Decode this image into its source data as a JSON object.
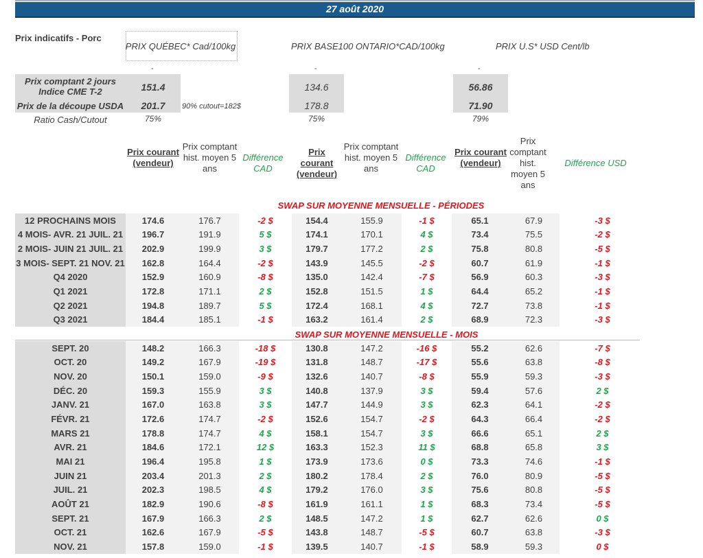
{
  "date": "27 août 2020",
  "title": "Prix indicatifs - Porc",
  "market_headers": [
    "PRIX QUÉBEC* Cad/100kg",
    "PRIX BASE100 ONTARIO*CAD/100kg",
    "PRIX U.S* USD Cent/lb"
  ],
  "dash": "-",
  "indicators": {
    "cash_label": "Prix comptant 2 jours Indice CME T-2",
    "cutout_label": "Prix de la découpe USDA",
    "ratio_label": "Ratio Cash/Cutout",
    "cash": [
      "151.4",
      "134.6",
      "56.86"
    ],
    "cutout": [
      "201.7",
      "178.8",
      "71.90"
    ],
    "ratio": [
      "75%",
      "75%",
      "79%"
    ],
    "note": "90% cutout=182$"
  },
  "column_headers": {
    "prix_courant": "Prix courant (vendeur)",
    "hist": "Prix comptant hist. moyen 5 ans",
    "hist_us": "Prix comptant hist. moyen 5 ans",
    "diff_cad": "Différence CAD",
    "diff_usd": "Différence USD"
  },
  "colors": {
    "header": "#1b5a8c",
    "negative": "#e8141c",
    "positive": "#1aa84a"
  },
  "periods": {
    "title": "SWAP SUR MOYENNE MENSUELLE - PÉRIODES",
    "rows": [
      {
        "label": "12 PROCHAINS MOIS",
        "v": [
          "174.6",
          "176.7",
          "-2 $",
          "154.4",
          "155.9",
          "-1 $",
          "65.1",
          "67.9",
          "-3 $"
        ],
        "c": "rrr"
      },
      {
        "label": "4 MOIS- AVR. 21 JUIL. 21",
        "v": [
          "196.7",
          "191.9",
          "5 $",
          "174.1",
          "170.1",
          "4 $",
          "73.4",
          "75.5",
          "-2 $"
        ],
        "c": "ggr"
      },
      {
        "label": "2 MOIS- JUIN 21 JUIL. 21",
        "v": [
          "202.9",
          "199.9",
          "3 $",
          "179.7",
          "177.2",
          "2 $",
          "75.8",
          "80.8",
          "-5 $"
        ],
        "c": "ggr"
      },
      {
        "label": "3 MOIS- SEPT. 21 NOV. 21",
        "v": [
          "162.8",
          "164.4",
          "-2 $",
          "143.9",
          "145.5",
          "-2 $",
          "60.7",
          "61.9",
          "-1 $"
        ],
        "c": "rrr"
      },
      {
        "label": "Q4 2020",
        "v": [
          "152.9",
          "160.9",
          "-8 $",
          "135.0",
          "142.4",
          "-7 $",
          "56.9",
          "60.3",
          "-3 $"
        ],
        "c": "rrr"
      },
      {
        "label": "Q1 2021",
        "v": [
          "172.8",
          "171.1",
          "2 $",
          "152.8",
          "151.5",
          "1 $",
          "64.4",
          "65.2",
          "-1 $"
        ],
        "c": "ggr"
      },
      {
        "label": "Q2 2021",
        "v": [
          "194.8",
          "189.7",
          "5 $",
          "172.4",
          "168.1",
          "4 $",
          "72.7",
          "73.8",
          "-1 $"
        ],
        "c": "ggr"
      },
      {
        "label": "Q3 2021",
        "v": [
          "184.4",
          "185.1",
          "-1 $",
          "163.2",
          "161.4",
          "2 $",
          "68.9",
          "72.3",
          "-3 $"
        ],
        "c": "rgr"
      }
    ]
  },
  "months": {
    "title": "SWAP SUR MOYENNE MENSUELLE - MOIS",
    "rows": [
      {
        "label": "SEPT. 20",
        "v": [
          "148.2",
          "166.3",
          "-18 $",
          "130.8",
          "147.2",
          "-16 $",
          "55.2",
          "62.6",
          "-7 $"
        ],
        "c": "rrr"
      },
      {
        "label": "OCT. 20",
        "v": [
          "149.2",
          "167.9",
          "-19 $",
          "131.8",
          "148.7",
          "-17 $",
          "55.6",
          "63.8",
          "-8 $"
        ],
        "c": "rrr"
      },
      {
        "label": "NOV. 20",
        "v": [
          "150.1",
          "159.0",
          "-9 $",
          "132.6",
          "140.7",
          "-8 $",
          "55.9",
          "59.3",
          "-3 $"
        ],
        "c": "rrr"
      },
      {
        "label": "DÉC. 20",
        "v": [
          "159.3",
          "155.9",
          "3 $",
          "140.8",
          "137.9",
          "3 $",
          "59.4",
          "57.6",
          "2 $"
        ],
        "c": "ggg"
      },
      {
        "label": "JANV. 21",
        "v": [
          "167.0",
          "163.8",
          "3 $",
          "147.7",
          "144.9",
          "3 $",
          "62.3",
          "64.1",
          "-2 $"
        ],
        "c": "ggr"
      },
      {
        "label": "FÉVR. 21",
        "v": [
          "172.6",
          "174.7",
          "-2 $",
          "152.6",
          "154.7",
          "-2 $",
          "64.3",
          "66.4",
          "-2 $"
        ],
        "c": "rrr"
      },
      {
        "label": "MARS 21",
        "v": [
          "178.8",
          "174.7",
          "4 $",
          "158.1",
          "154.7",
          "3 $",
          "66.6",
          "65.1",
          "2 $"
        ],
        "c": "ggg"
      },
      {
        "label": "AVR. 21",
        "v": [
          "184.6",
          "172.1",
          "12 $",
          "163.3",
          "152.3",
          "11 $",
          "68.8",
          "65.8",
          "3 $"
        ],
        "c": "ggg"
      },
      {
        "label": "MAI 21",
        "v": [
          "196.4",
          "195.8",
          "1 $",
          "173.9",
          "173.6",
          "0 $",
          "73.3",
          "74.6",
          "-1 $"
        ],
        "c": "ggr"
      },
      {
        "label": "JUIN 21",
        "v": [
          "203.4",
          "201.3",
          "2 $",
          "180.2",
          "178.4",
          "2 $",
          "76.0",
          "80.9",
          "-5 $"
        ],
        "c": "ggr"
      },
      {
        "label": "JUIL. 21",
        "v": [
          "202.3",
          "198.5",
          "4 $",
          "179.2",
          "176.0",
          "3 $",
          "75.6",
          "80.8",
          "-5 $"
        ],
        "c": "ggr"
      },
      {
        "label": "AOÛT 21",
        "v": [
          "182.9",
          "190.6",
          "-8 $",
          "161.9",
          "161.1",
          "1 $",
          "68.3",
          "73.4",
          "-5 $"
        ],
        "c": "rgr"
      },
      {
        "label": "SEPT. 21",
        "v": [
          "167.9",
          "166.3",
          "2 $",
          "148.5",
          "147.2",
          "1 $",
          "62.7",
          "62.6",
          "0 $"
        ],
        "c": "ggg"
      },
      {
        "label": "OCT. 21",
        "v": [
          "162.6",
          "167.9",
          "-5 $",
          "143.8",
          "148.7",
          "-5 $",
          "60.7",
          "63.8",
          "-3 $"
        ],
        "c": "rrr"
      },
      {
        "label": "NOV. 21",
        "v": [
          "157.8",
          "159.0",
          "-1 $",
          "139.5",
          "140.7",
          "-1 $",
          "58.9",
          "59.3",
          "0 $"
        ],
        "c": "rrr"
      }
    ]
  }
}
